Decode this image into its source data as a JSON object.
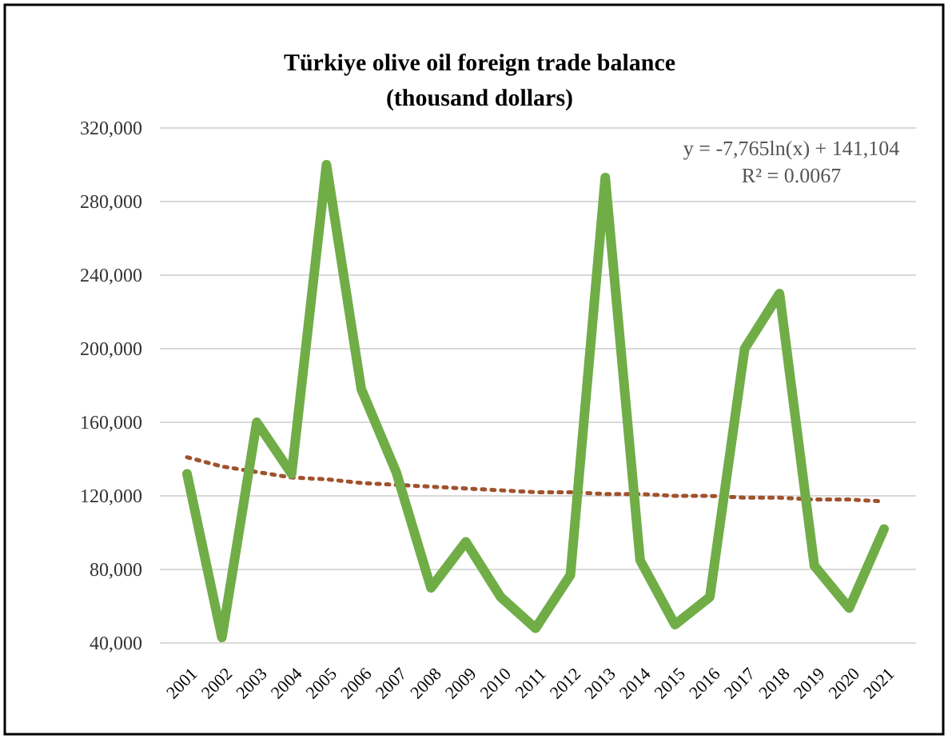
{
  "chart_data": {
    "type": "line",
    "title": "Türkiye olive oil foreign trade balance\n(thousand dollars)",
    "categories": [
      "2001",
      "2002",
      "2003",
      "2004",
      "2005",
      "2006",
      "2007",
      "2008",
      "2009",
      "2010",
      "2011",
      "2012",
      "2013",
      "2014",
      "2015",
      "2016",
      "2017",
      "2018",
      "2019",
      "2020",
      "2021"
    ],
    "series": [
      {
        "type": "line",
        "color": "#70ad47",
        "line_style": "solid",
        "values": [
          132000,
          43000,
          160000,
          132000,
          300000,
          178000,
          133000,
          70000,
          95000,
          65000,
          48000,
          77000,
          293000,
          85000,
          50000,
          65000,
          200000,
          230000,
          82000,
          59000,
          102000
        ]
      },
      {
        "type": "line",
        "color": "#a0522d",
        "line_style": "dotted",
        "values": [
          141000,
          136000,
          133000,
          130000,
          129000,
          127000,
          126000,
          125000,
          124000,
          123000,
          122000,
          122000,
          121000,
          121000,
          120000,
          120000,
          119000,
          119000,
          118000,
          118000,
          117000
        ]
      }
    ],
    "ylim": [
      40000,
      320000
    ],
    "yticks": [
      {
        "value": 40000,
        "label": "40,000"
      },
      {
        "value": 80000,
        "label": "80,000"
      },
      {
        "value": 120000,
        "label": "120,000"
      },
      {
        "value": 160000,
        "label": "160,000"
      },
      {
        "value": 200000,
        "label": "200,000"
      },
      {
        "value": 240000,
        "label": "240,000"
      },
      {
        "value": 280000,
        "label": "280,000"
      },
      {
        "value": 320000,
        "label": "320,000"
      }
    ],
    "grid": "y",
    "marker": "none",
    "annotations": [
      "y = -7,765ln(x) + 141,104",
      "R² = 0.0067"
    ]
  }
}
